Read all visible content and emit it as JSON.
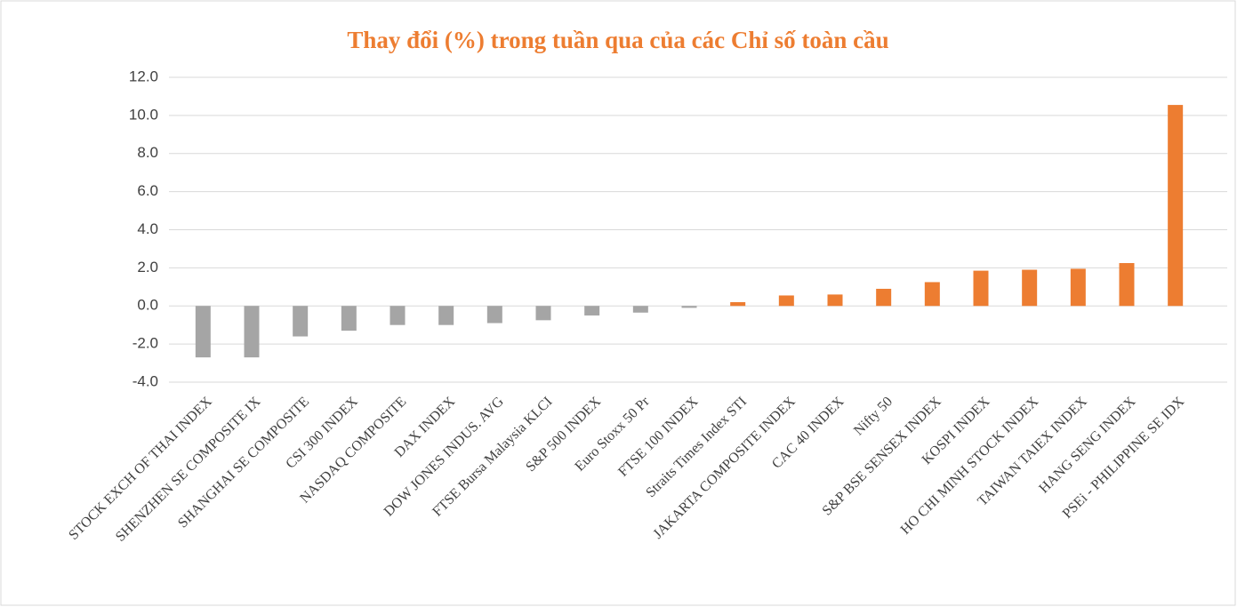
{
  "chart_data": {
    "type": "bar",
    "title": "Thay đổi (%) trong tuần qua của các Chỉ số toàn cầu",
    "categories": [
      "STOCK EXCH OF THAI INDEX",
      "SHENZHEN SE COMPOSITE IX",
      "SHANGHAI SE COMPOSITE",
      "CSI 300 INDEX",
      "NASDAQ COMPOSITE",
      "DAX INDEX",
      "DOW JONES INDUS. AVG",
      "FTSE Bursa Malaysia KLCI",
      "S&P 500 INDEX",
      "Euro Stoxx 50 Pr",
      "FTSE 100 INDEX",
      "Straits Times Index STI",
      "JAKARTA COMPOSITE INDEX",
      "CAC 40 INDEX",
      "Nifty 50",
      "S&P BSE SENSEX INDEX",
      "KOSPI INDEX",
      "HO CHI MINH STOCK INDEX",
      "TAIWAN TAIEX INDEX",
      "HANG SENG INDEX",
      "PSEi - PHILIPPINE SE IDX"
    ],
    "values": [
      -2.7,
      -2.7,
      -1.6,
      -1.3,
      -1.0,
      -1.0,
      -0.9,
      -0.75,
      -0.5,
      -0.35,
      -0.1,
      0.2,
      0.55,
      0.6,
      0.9,
      1.25,
      1.85,
      1.9,
      1.95,
      2.25,
      10.55
    ],
    "colors": [
      "#a5a5a5",
      "#a5a5a5",
      "#a5a5a5",
      "#a5a5a5",
      "#a5a5a5",
      "#a5a5a5",
      "#a5a5a5",
      "#a5a5a5",
      "#a5a5a5",
      "#a5a5a5",
      "#a5a5a5",
      "#ed7d31",
      "#ed7d31",
      "#ed7d31",
      "#ed7d31",
      "#ed7d31",
      "#ed7d31",
      "#ed7d31",
      "#ed7d31",
      "#ed7d31",
      "#ed7d31"
    ],
    "ylim": [
      -4,
      12
    ],
    "yticks": [
      {
        "value": -4,
        "label": "-4.0"
      },
      {
        "value": -2,
        "label": "-2.0"
      },
      {
        "value": 0,
        "label": "0.0"
      },
      {
        "value": 2,
        "label": "2.0"
      },
      {
        "value": 4,
        "label": "4.0"
      },
      {
        "value": 6,
        "label": "6.0"
      },
      {
        "value": 8,
        "label": "8.0"
      },
      {
        "value": 10,
        "label": "10.0"
      },
      {
        "value": 12,
        "label": "12.0"
      }
    ],
    "grid": true
  }
}
